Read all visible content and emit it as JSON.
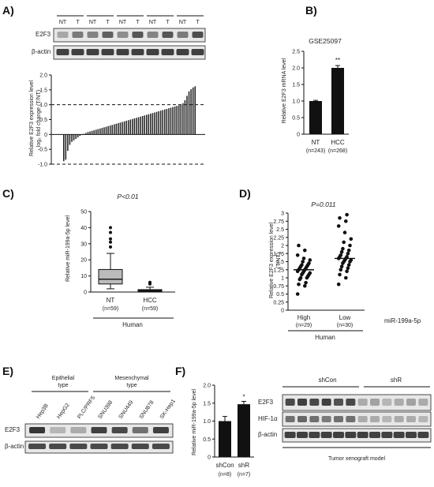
{
  "panels": {
    "A": {
      "label": "A)",
      "lane_labels": [
        "NT",
        "T",
        "NT",
        "T",
        "NT",
        "T",
        "NT",
        "T",
        "NT",
        "T"
      ],
      "blot_labels": [
        "E2F3",
        "β-actin"
      ],
      "ylabel_line1": "Relative E2F3 expression level",
      "ylabel_line2": "log₂ fold change (T/NT)",
      "yticks": [
        "2.0",
        "1.5",
        "1.0",
        "0.5",
        "0",
        "-0.5",
        "-1.0"
      ]
    },
    "B": {
      "label": "B)",
      "title": "GSE25097",
      "ylabel": "Relative E2F3 mRNA level",
      "yticks": [
        "0",
        "0.5",
        "1.0",
        "1.5",
        "2.0",
        "2.5"
      ],
      "categories": [
        "NT",
        "HCC"
      ],
      "ns": [
        "(n=243)",
        "(n=268)"
      ],
      "significance": "**"
    },
    "C": {
      "label": "C)",
      "pvalue": "P<0.01",
      "ylabel": "Relative miR-199a-5p level",
      "yticks": [
        "0",
        "10",
        "20",
        "30",
        "40",
        "50"
      ],
      "categories": [
        "NT",
        "HCC"
      ],
      "ns": [
        "(n=59)",
        "(n=59)"
      ],
      "group": "Human"
    },
    "D": {
      "label": "D)",
      "pvalue": "P=0.011",
      "ylabel_line1": "Relative E2F3 expression level",
      "ylabel_line2": "(T/NT)",
      "yticks": [
        "0",
        "0.25",
        "0.5",
        "0.75",
        "1",
        "1.25",
        "1.5",
        "1.75",
        "2",
        "2.25",
        "2.5",
        "2.75",
        "3"
      ],
      "categories": [
        "High",
        "Low"
      ],
      "ns": [
        "(n=29)",
        "(n=30)"
      ],
      "group_label": "miR-199a-5p",
      "group": "Human"
    },
    "E": {
      "label": "E)",
      "group1_line1": "Epithelial",
      "group1_line2": "type",
      "group2_line1": "Mesenchymal",
      "group2_line2": "type",
      "cell_lines": [
        "Hep3B",
        "HepG2",
        "PLC/PRF5",
        "SNU398",
        "SNU449",
        "SNU878",
        "SK-Hep1"
      ],
      "blot_labels": [
        "E2F3",
        "β-actin"
      ]
    },
    "F": {
      "label": "F)",
      "ylabel": "Relative miR-199a-5p level",
      "yticks": [
        "0",
        "0.5",
        "1.0",
        "1.5",
        "2.0"
      ],
      "categories": [
        "shCon",
        "shR"
      ],
      "ns": [
        "(n=8)",
        "(n=7)"
      ],
      "significance": "*",
      "blot_groups": [
        "shCon",
        "shR"
      ],
      "blot_labels": [
        "E2F3",
        "HIF-1α",
        "β-actin"
      ],
      "model_caption": "Tumor xenograft model"
    }
  },
  "chart_data": [
    {
      "panel": "A",
      "type": "bar",
      "sorted": true,
      "ylabel": "Relative E2F3 expression level log2 fold change (T/NT)",
      "ylim": [
        -1.0,
        2.0
      ],
      "reference_lines": [
        1.0,
        -1.0
      ],
      "values": [
        -0.9,
        -0.85,
        -0.55,
        -0.35,
        -0.25,
        -0.2,
        -0.15,
        -0.1,
        -0.05,
        -0.02,
        0.02,
        0.05,
        0.08,
        0.1,
        0.12,
        0.14,
        0.16,
        0.18,
        0.2,
        0.22,
        0.24,
        0.26,
        0.28,
        0.3,
        0.32,
        0.34,
        0.36,
        0.38,
        0.4,
        0.42,
        0.44,
        0.46,
        0.48,
        0.5,
        0.52,
        0.54,
        0.56,
        0.58,
        0.6,
        0.62,
        0.64,
        0.66,
        0.68,
        0.7,
        0.72,
        0.74,
        0.76,
        0.78,
        0.8,
        0.82,
        0.84,
        0.86,
        0.88,
        0.9,
        0.92,
        0.94,
        0.96,
        0.98,
        1.0,
        1.05,
        1.15,
        1.3,
        1.45,
        1.52,
        1.58,
        1.62
      ]
    },
    {
      "panel": "B",
      "type": "bar",
      "title": "GSE25097",
      "ylabel": "Relative E2F3 mRNA level",
      "categories": [
        "NT",
        "HCC"
      ],
      "values": [
        1.0,
        2.0
      ],
      "errors": [
        0.02,
        0.07
      ],
      "ylim": [
        0,
        2.5
      ]
    },
    {
      "panel": "C",
      "type": "box",
      "ylabel": "Relative miR-199a-5p level",
      "categories": [
        "NT",
        "HCC"
      ],
      "ylim": [
        0,
        50
      ],
      "boxes": [
        {
          "min": 2,
          "q1": 5,
          "median": 8,
          "q3": 14,
          "max": 24,
          "outliers": [
            28,
            31,
            33,
            37,
            40
          ]
        },
        {
          "min": 0,
          "q1": 0.5,
          "median": 1,
          "q3": 1.5,
          "max": 3,
          "outliers": [
            5,
            6
          ]
        }
      ]
    },
    {
      "panel": "D",
      "type": "scatter",
      "ylabel": "Relative E2F3 expression level (T/NT)",
      "categories": [
        "High",
        "Low"
      ],
      "ylim": [
        0,
        3
      ],
      "medians": [
        1.25,
        1.6
      ],
      "points": [
        [
          0.5,
          0.75,
          0.8,
          0.85,
          0.95,
          1.0,
          1.0,
          1.05,
          1.1,
          1.1,
          1.15,
          1.15,
          1.2,
          1.2,
          1.25,
          1.25,
          1.3,
          1.3,
          1.35,
          1.35,
          1.4,
          1.4,
          1.45,
          1.5,
          1.55,
          1.6,
          1.7,
          1.85,
          2.0
        ],
        [
          0.8,
          1.0,
          1.1,
          1.2,
          1.25,
          1.3,
          1.35,
          1.4,
          1.45,
          1.5,
          1.5,
          1.55,
          1.55,
          1.6,
          1.6,
          1.65,
          1.65,
          1.7,
          1.75,
          1.8,
          1.85,
          1.9,
          2.0,
          2.1,
          2.2,
          2.4,
          2.6,
          2.75,
          2.85,
          2.95
        ]
      ]
    },
    {
      "panel": "F",
      "type": "bar",
      "ylabel": "Relative miR-199a-5p level",
      "categories": [
        "shCon",
        "shR"
      ],
      "values": [
        1.0,
        1.47
      ],
      "errors": [
        0.13,
        0.08
      ],
      "ylim": [
        0,
        2.0
      ]
    }
  ]
}
